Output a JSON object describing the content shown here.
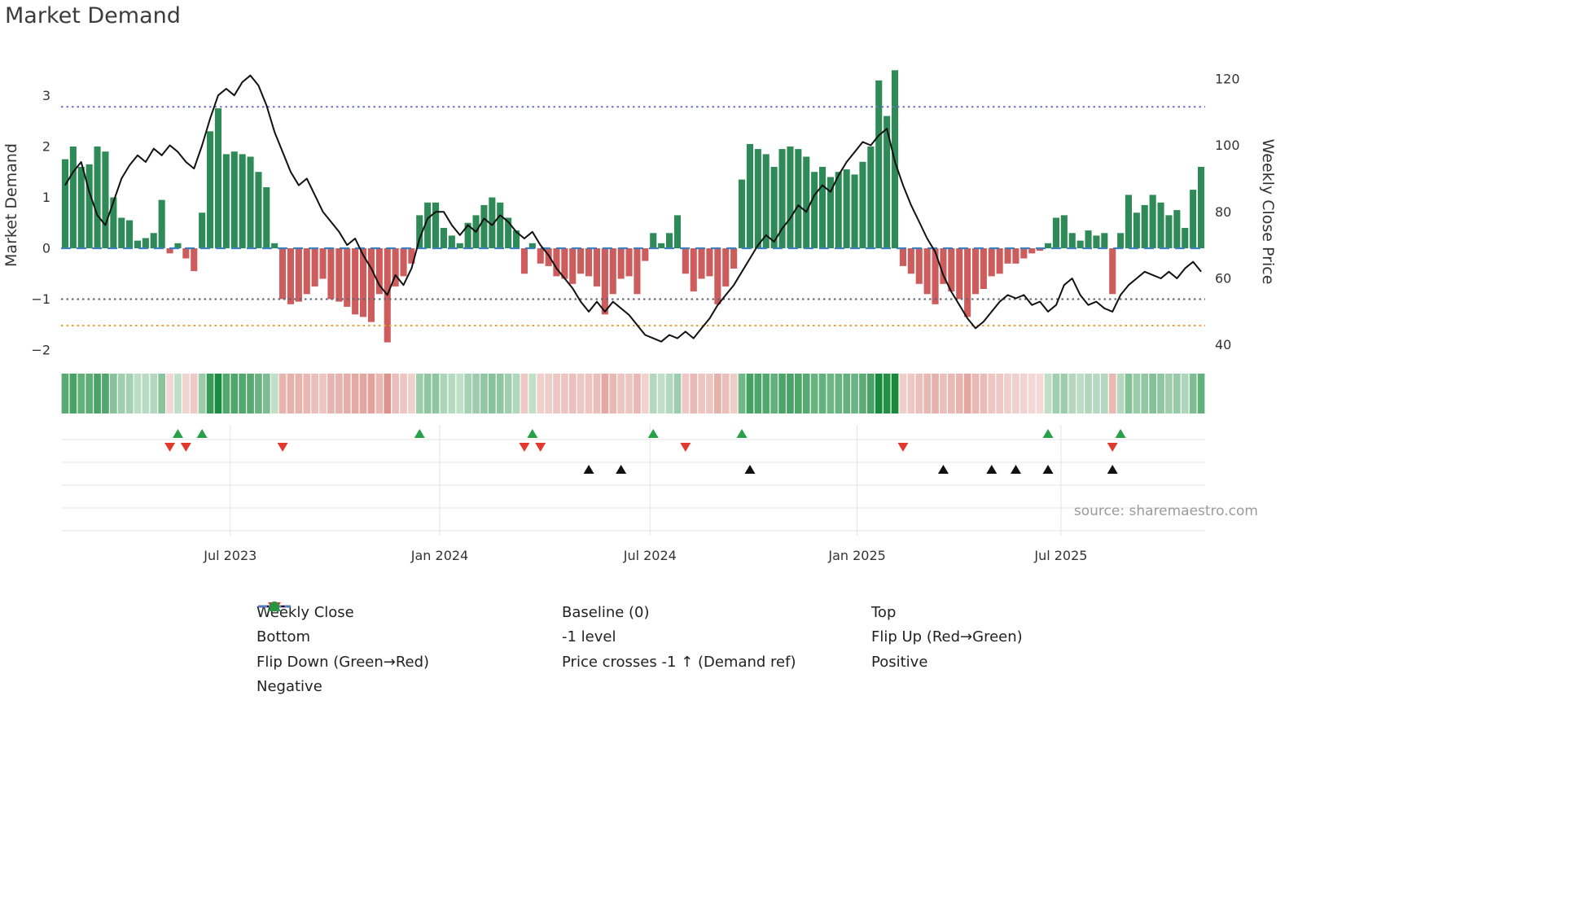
{
  "source": "source: sharemaestro.com",
  "colors": {
    "bar_positive": "#2e8b57",
    "bar_negative": "#cd5c5c",
    "close_line": "#111111",
    "flip_up": "#27a048",
    "flip_down": "#e03a2f",
    "price_cross": "#111111",
    "positive_dot": "#2a9440",
    "negative_dot": "#b22a2a",
    "heatmap_positive": "#188a3c",
    "heatmap_negative": "#c0392b"
  },
  "chart_data": {
    "type": "bar+line combo with heatmap strip and signal markers",
    "title": "Market Demand",
    "x_axis": {
      "ticks": [
        {
          "week": 20.5,
          "label": "Jul 2023"
        },
        {
          "week": 46.5,
          "label": "Jan 2024"
        },
        {
          "week": 72.6,
          "label": "Jul 2024"
        },
        {
          "week": 98.3,
          "label": "Jan 2025"
        },
        {
          "week": 123.6,
          "label": "Jul 2025"
        }
      ]
    },
    "left_axis": {
      "label": "Market Demand",
      "lim": [
        -2.24,
        3.92
      ],
      "ticks": [
        {
          "v": 3,
          "label": "3"
        },
        {
          "v": 2,
          "label": "2"
        },
        {
          "v": 1,
          "label": "1"
        },
        {
          "v": 0,
          "label": "0"
        },
        {
          "v": -1,
          "label": "−1"
        },
        {
          "v": -2,
          "label": "−2"
        }
      ]
    },
    "right_axis": {
      "label": "Weekly Close Price",
      "lim": [
        34.8,
        129.0
      ],
      "ticks": [
        {
          "v": 120,
          "label": "120"
        },
        {
          "v": 100,
          "label": "100"
        },
        {
          "v": 80,
          "label": "80"
        },
        {
          "v": 60,
          "label": "60"
        },
        {
          "v": 40,
          "label": "40"
        }
      ]
    },
    "series": [
      {
        "name": "Market Demand",
        "type": "bar",
        "axis": "left",
        "pos_color": "#2e8b57",
        "neg_color": "#cd5c5c",
        "values": [
          1.75,
          2.0,
          1.6,
          1.65,
          2.0,
          1.9,
          1.0,
          0.6,
          0.55,
          0.15,
          0.2,
          0.3,
          0.95,
          -0.1,
          0.1,
          -0.2,
          -0.45,
          0.7,
          2.3,
          2.75,
          1.85,
          1.9,
          1.85,
          1.8,
          1.5,
          1.2,
          0.1,
          -1.0,
          -1.1,
          -1.05,
          -0.9,
          -0.75,
          -0.6,
          -1.0,
          -1.05,
          -1.15,
          -1.3,
          -1.35,
          -1.45,
          -0.9,
          -1.85,
          -0.75,
          -0.55,
          -0.3,
          0.65,
          0.9,
          0.9,
          0.4,
          0.25,
          0.1,
          0.5,
          0.65,
          0.85,
          1.0,
          0.9,
          0.6,
          0.35,
          -0.5,
          0.1,
          -0.3,
          -0.35,
          -0.55,
          -0.6,
          -0.7,
          -0.5,
          -0.55,
          -0.75,
          -1.3,
          -0.9,
          -0.6,
          -0.55,
          -0.9,
          -0.25,
          0.3,
          0.1,
          0.3,
          0.65,
          -0.5,
          -0.85,
          -0.6,
          -0.55,
          -1.1,
          -0.75,
          -0.4,
          1.35,
          2.05,
          1.95,
          1.85,
          1.6,
          1.95,
          2.0,
          1.95,
          1.8,
          1.5,
          1.6,
          1.4,
          1.5,
          1.55,
          1.45,
          1.7,
          2.0,
          3.3,
          2.6,
          3.5,
          -0.35,
          -0.5,
          -0.7,
          -0.9,
          -1.1,
          -0.7,
          -0.85,
          -1.0,
          -1.35,
          -0.9,
          -0.8,
          -0.55,
          -0.5,
          -0.3,
          -0.3,
          -0.2,
          -0.1,
          -0.05,
          0.1,
          0.6,
          0.65,
          0.3,
          0.15,
          0.35,
          0.25,
          0.3,
          -0.9,
          0.3,
          1.05,
          0.7,
          0.85,
          1.05,
          0.9,
          0.65,
          0.75,
          0.4,
          1.15,
          1.6
        ]
      },
      {
        "name": "Weekly Close",
        "type": "line",
        "axis": "right",
        "color": "#111111",
        "values": [
          88,
          92,
          95,
          86,
          79,
          76,
          83,
          90,
          94,
          97,
          95,
          99,
          97,
          100,
          98,
          95,
          93,
          100,
          108,
          115,
          117,
          115,
          119,
          121,
          118,
          112,
          104,
          98,
          92,
          88,
          90,
          85,
          80,
          77,
          74,
          70,
          72,
          67,
          63,
          58,
          55,
          61,
          58,
          63,
          72,
          78,
          80,
          80,
          76,
          73,
          76,
          74,
          78,
          76,
          79,
          77,
          74,
          72,
          74,
          70,
          67,
          63,
          60,
          57,
          53,
          50,
          53,
          50,
          53,
          51,
          49,
          46,
          43,
          42,
          41,
          43,
          42,
          44,
          42,
          45,
          48,
          52,
          55,
          58,
          62,
          66,
          70,
          73,
          71,
          75,
          78,
          82,
          80,
          85,
          88,
          86,
          91,
          95,
          98,
          101,
          100,
          103,
          105,
          95,
          88,
          82,
          77,
          72,
          68,
          61,
          56,
          52,
          48,
          45,
          47,
          50,
          53,
          55,
          54,
          55,
          52,
          53,
          50,
          52,
          58,
          60,
          55,
          52,
          53,
          51,
          50,
          55,
          58,
          60,
          62,
          61,
          60,
          62,
          60,
          63,
          65,
          62
        ]
      }
    ],
    "reference_lines": [
      {
        "id": "top",
        "name": "Top",
        "value": 2.78,
        "color": "#7070cc",
        "style": "dotted"
      },
      {
        "id": "baseline",
        "name": "Baseline (0)",
        "value": 0,
        "color": "#3b7fbf",
        "style": "dashed"
      },
      {
        "id": "minus1",
        "name": "-1 level",
        "value": -1,
        "color": "#606070",
        "style": "dotted"
      },
      {
        "id": "bottom",
        "name": "Bottom",
        "value": -1.52,
        "color": "#e5a03c",
        "style": "dotted"
      }
    ],
    "markers": {
      "flip_up_weeks": [
        14,
        17,
        44,
        58,
        73,
        84,
        122,
        131
      ],
      "flip_down_weeks": [
        13,
        15,
        27,
        57,
        59,
        77,
        104,
        130
      ],
      "price_cross_weeks": [
        65,
        69,
        85,
        109,
        115,
        118,
        122,
        130
      ]
    },
    "heatmap": {
      "derived_from": "Market Demand bar values",
      "pos_color": "#188a3c",
      "neg_color": "#c0392b"
    }
  },
  "legend": {
    "columns": [
      [
        "weekly_close",
        "bottom",
        "flip_down",
        "negative"
      ],
      [
        "baseline",
        "minus1",
        "price_cross"
      ],
      [
        "top",
        "flip_up",
        "positive"
      ]
    ],
    "items": {
      "weekly_close": {
        "label": "Weekly Close",
        "glyph": "line-solid",
        "color": "#111111"
      },
      "baseline": {
        "label": "Baseline (0)",
        "glyph": "line-dashed",
        "color": "#3b7fbf"
      },
      "top": {
        "label": "Top",
        "glyph": "line-dotted",
        "color": "#7070cc"
      },
      "bottom": {
        "label": "Bottom",
        "glyph": "line-dotted",
        "color": "#e5a03c"
      },
      "minus1": {
        "label": "-1 level",
        "glyph": "line-dotted",
        "color": "#606070"
      },
      "flip_up": {
        "label": "Flip Up (Red→Green)",
        "glyph": "triangle-up",
        "color": "#27a048"
      },
      "flip_down": {
        "label": "Flip Down (Green→Red)",
        "glyph": "triangle-down",
        "color": "#e03a2f"
      },
      "price_cross": {
        "label": "Price crosses -1 ↑ (Demand ref)",
        "glyph": "triangle-up",
        "color": "#111111"
      },
      "positive": {
        "label": "Positive",
        "glyph": "circle",
        "color": "#2a9440"
      },
      "negative": {
        "label": "Negative",
        "glyph": "circle",
        "color": "#b22a2a"
      }
    }
  }
}
